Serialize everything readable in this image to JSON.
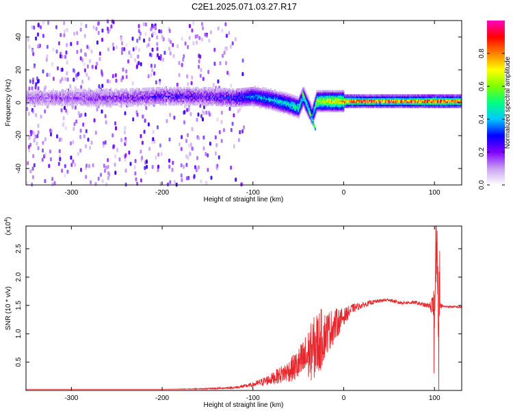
{
  "title": "C2E1.2025.071.03.27.R17",
  "colors": {
    "snr_line": "#e8262b",
    "scatter_low": "#8a2be2",
    "colormap": [
      "#ffffff",
      "#c8a0f0",
      "#8000ff",
      "#0000ff",
      "#00c8ff",
      "#00ff80",
      "#80ff00",
      "#ffff00",
      "#ff8000",
      "#ff0000",
      "#ff00c0"
    ]
  },
  "chart_data": [
    {
      "type": "heatmap",
      "name": "spectrogram",
      "xlabel": "Height of straight line (km)",
      "ylabel": "Frequency (Hz)",
      "xlim": [
        -350,
        130
      ],
      "ylim": [
        -50,
        50
      ],
      "xticks": [
        -300,
        -200,
        -100,
        0,
        100
      ],
      "yticks": [
        -40,
        -20,
        0,
        20,
        40
      ],
      "colorbar": {
        "label": "Normalized spectral amplitude",
        "range": [
          0,
          1
        ],
        "ticks": [
          "0.0",
          "0.2",
          "0.4",
          "0.6",
          "0.8"
        ]
      },
      "ridge": {
        "x": [
          -350,
          -300,
          -250,
          -200,
          -150,
          -120,
          -100,
          -80,
          -60,
          -50,
          -45,
          -40,
          -35,
          -30,
          -20,
          0,
          20,
          50,
          80,
          100,
          130
        ],
        "freq": [
          3,
          3,
          3,
          4,
          4,
          3,
          4,
          2,
          -1,
          -3,
          4,
          -2,
          -8,
          1,
          1,
          1,
          1,
          1,
          1,
          1,
          1
        ],
        "amplitude": [
          0.15,
          0.18,
          0.2,
          0.25,
          0.25,
          0.3,
          0.4,
          0.45,
          0.5,
          0.55,
          0.5,
          0.5,
          0.4,
          0.7,
          0.75,
          0.8,
          0.7,
          0.7,
          0.75,
          0.8,
          0.75
        ]
      }
    },
    {
      "type": "line",
      "name": "snr",
      "xlabel": "Height of straight line (km)",
      "ylabel": "SNR (10 * v/v)",
      "y_multiplier": "(x10",
      "y_multiplier_exp": "4",
      "xlim": [
        -350,
        130
      ],
      "ylim": [
        0,
        2.9
      ],
      "xticks": [
        -300,
        -200,
        -100,
        0,
        100
      ],
      "yticks": [
        "0.5",
        "1.0",
        "1.5",
        "2.0",
        "2.5"
      ],
      "series": [
        {
          "x": [
            -350,
            -200,
            -150,
            -120,
            -100,
            -80,
            -60,
            -50,
            -40,
            -30,
            -25,
            -20,
            -10,
            0,
            10,
            20,
            30,
            40,
            50,
            60,
            70,
            80,
            90,
            95,
            100,
            102,
            104,
            106,
            110,
            130
          ],
          "y": [
            0.02,
            0.02,
            0.03,
            0.05,
            0.1,
            0.2,
            0.35,
            0.45,
            0.6,
            0.8,
            0.9,
            1.0,
            1.15,
            1.3,
            1.45,
            1.5,
            1.55,
            1.58,
            1.6,
            1.55,
            1.55,
            1.55,
            1.5,
            1.5,
            1.4,
            2.8,
            1.0,
            1.5,
            1.48,
            1.47
          ],
          "noise": [
            0,
            0,
            0.01,
            0.02,
            0.04,
            0.1,
            0.2,
            0.3,
            0.45,
            0.6,
            0.55,
            0.4,
            0.3,
            0.15,
            0.08,
            0.05,
            0.04,
            0.03,
            0.03,
            0.03,
            0.03,
            0.03,
            0.04,
            0.05,
            0.4,
            0.3,
            0.4,
            0.05,
            0.02,
            0.02
          ]
        }
      ]
    }
  ]
}
